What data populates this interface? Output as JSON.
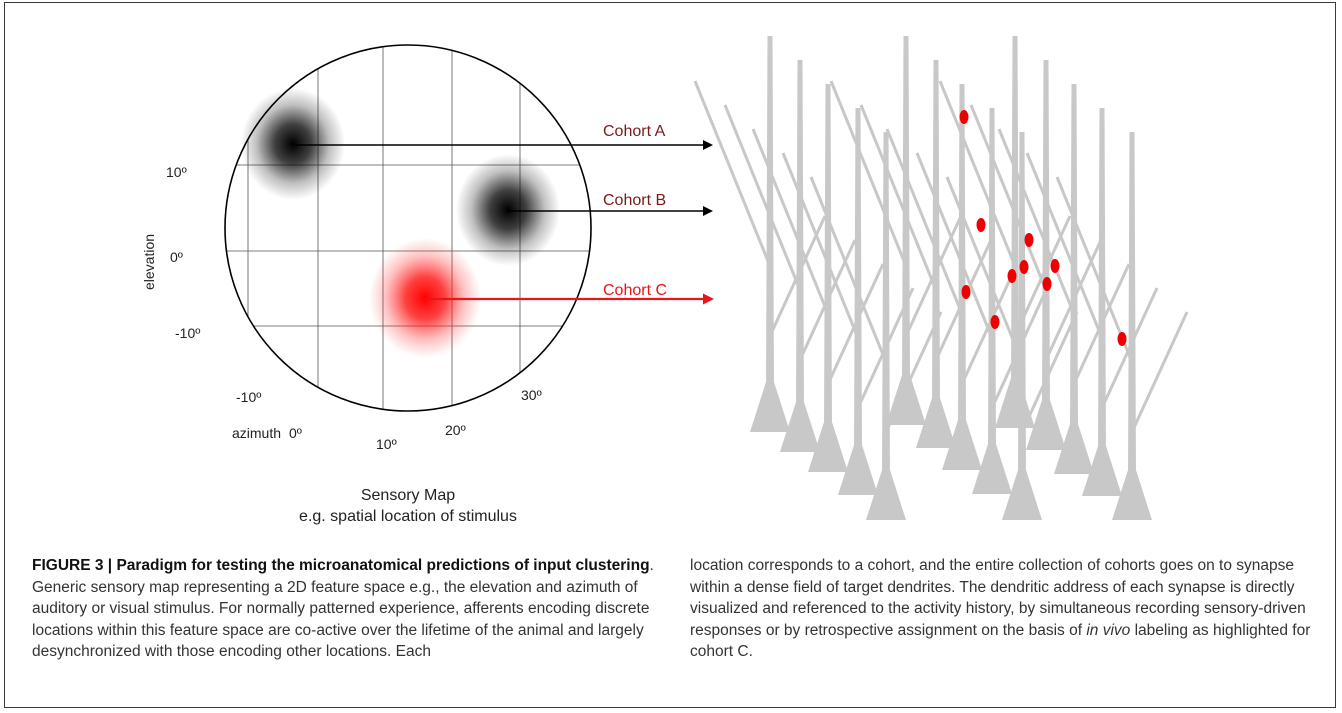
{
  "figure": {
    "sensory_map": {
      "elevation_label": "elevation",
      "azimuth_label": "azimuth",
      "elevation_ticks": [
        "10º",
        "0º",
        "-10º"
      ],
      "azimuth_ticks": [
        "-10º",
        "0º",
        "10º",
        "20º",
        "30º"
      ],
      "title_line1": "Sensory Map",
      "title_line2": "e.g. spatial location of stimulus"
    },
    "cohorts": [
      {
        "label": "Cohort A",
        "color": "#7a1a1a",
        "blob_color": "#000000"
      },
      {
        "label": "Cohort B",
        "color": "#7a1a1a",
        "blob_color": "#000000"
      },
      {
        "label": "Cohort C",
        "color": "#e8161b",
        "blob_color": "#ff0000"
      }
    ],
    "colors": {
      "dendrite": "#c8c8c8",
      "synapse": "#ee0000",
      "border": "#3a3a3a"
    }
  },
  "caption": {
    "label": "FIGURE 3 | ",
    "title": "Paradigm for testing the microanatomical predictions of input clustering",
    "left_text": ". Generic sensory map representing a 2D feature space e.g., the elevation and azimuth of auditory or visual stimulus. For normally patterned experience, afferents encoding discrete locations within this feature space are co-active over the lifetime of the animal and largely desynchronized with those encoding other locations. Each",
    "right_text_1": "location corresponds to a cohort, and the entire collection of cohorts goes on to synapse within a dense field of target dendrites. The dendritic address of each synapse is directly visualized and referenced to the activity history, by simultaneous recording sensory-driven responses or by retrospective assignment on the basis of ",
    "right_italic": "in vivo",
    "right_text_2": " labeling as highlighted for cohort C."
  }
}
